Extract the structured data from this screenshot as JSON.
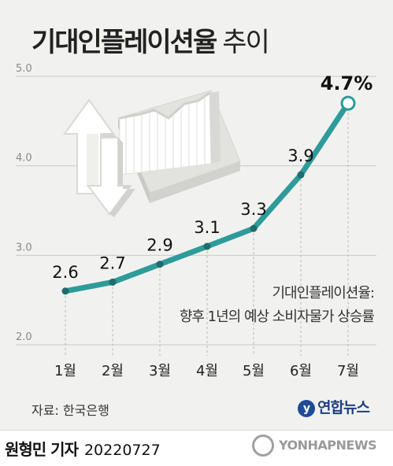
{
  "header": {
    "title_main": "기대인플레이션율",
    "title_sub": "추이"
  },
  "chart_data": {
    "type": "line",
    "title": "기대인플레이션율 추이",
    "categories": [
      "1월",
      "2월",
      "3월",
      "4월",
      "5월",
      "6월",
      "7월"
    ],
    "series": [
      {
        "values": [
          2.6,
          2.7,
          2.9,
          3.1,
          3.3,
          3.9,
          4.7
        ]
      }
    ],
    "data_labels": [
      "2.6",
      "2.7",
      "2.9",
      "3.1",
      "3.3",
      "3.9",
      "4.7%"
    ],
    "y_ticks": [
      "2.0",
      "3.0",
      "4.0",
      "5.0"
    ],
    "ylim": [
      2.0,
      5.0
    ],
    "grid": true,
    "colors": {
      "line": "#2e9b9b",
      "marker_fill": "#1f6c6c",
      "highlight_fill": "#ffffff"
    }
  },
  "definition": {
    "line1": "기대인플레이션율:",
    "line2": "향후 1년의 예상 소비자물가 상승률"
  },
  "source": "자료: 한국은행",
  "brand": {
    "mark": "y",
    "name": "연합뉴스"
  },
  "credit": {
    "name": "원형민 기자",
    "date": "20220727"
  },
  "watermark": "YONHAPNEWS",
  "icons": [
    "up-down-arrows-icon",
    "rising-chart-icon"
  ]
}
